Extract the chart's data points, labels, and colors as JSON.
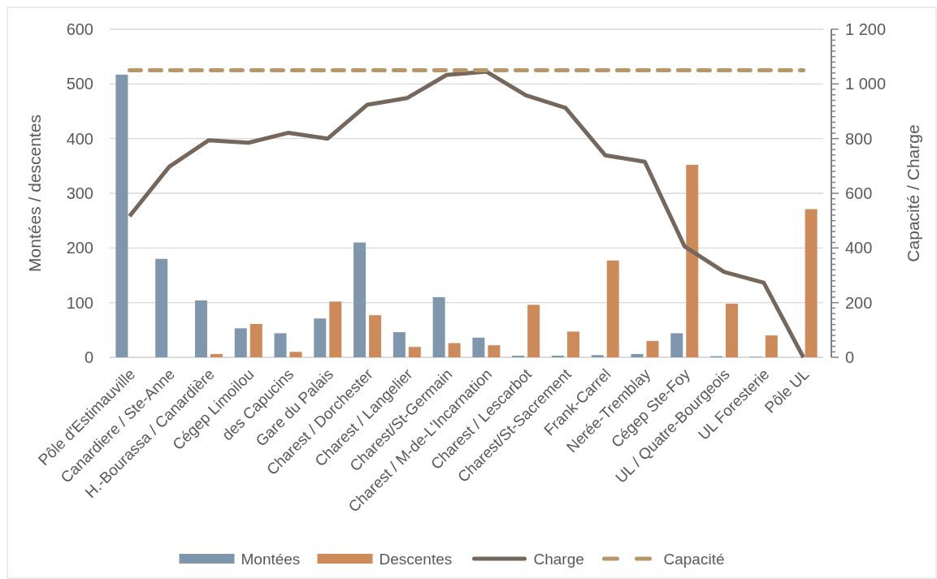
{
  "chart_data": {
    "type": "bar",
    "ylabel": "Montées / descentes",
    "y2label": "Capacité / Charge",
    "categories": [
      "Pôle d'Estimauville",
      "Canardiere / Ste-Anne",
      "H.-Bourassa / Canardière",
      "Cégep Limoilou",
      "des Capucins",
      "Gare du Palais",
      "Charest / Dorchester",
      "Charest / Langelier",
      "Charest/St-Germain",
      "Charest / M-de-L'Incarnation",
      "Charest / Lescarbot",
      "Charest/St-Sacrement",
      "Frank-Carrel",
      "Nerée-Tremblay",
      "Cégep Ste-Foy",
      "UL / Quatre-Bourgeois",
      "UL Foresterie",
      "Pôle UL"
    ],
    "series": [
      {
        "name": "Montées",
        "color": "#7f96ac",
        "values": [
          517,
          180,
          104,
          53,
          44,
          71,
          210,
          46,
          110,
          36,
          3,
          3,
          4,
          6,
          44,
          2,
          1,
          0
        ]
      },
      {
        "name": "Descentes",
        "color": "#cd8b5c",
        "values": [
          0,
          0,
          6,
          61,
          10,
          102,
          77,
          19,
          26,
          22,
          96,
          47,
          177,
          30,
          352,
          98,
          40,
          271
        ]
      },
      {
        "name": "Charge",
        "type": "line",
        "axis": "y2",
        "color": "#76675d",
        "line_style": "solid",
        "values": [
          516,
          697,
          794,
          785,
          821,
          800,
          924,
          948,
          1033,
          1045,
          958,
          912,
          739,
          715,
          406,
          312,
          273,
          0
        ]
      },
      {
        "name": "Capacité",
        "type": "line",
        "axis": "y2",
        "color": "#b8966a",
        "line_style": "dashed",
        "values": [
          1050,
          1050,
          1050,
          1050,
          1050,
          1050,
          1050,
          1050,
          1050,
          1050,
          1050,
          1050,
          1050,
          1050,
          1050,
          1050,
          1050,
          1050
        ]
      }
    ],
    "ylim": [
      0,
      600
    ],
    "yticks": [
      0,
      100,
      200,
      300,
      400,
      500,
      600
    ],
    "y2lim": [
      0,
      1200
    ],
    "y2ticks": [
      0,
      {
        "value": 20,
        "label": null
      },
      {
        "value": 40,
        "label": null
      },
      {
        "value": 60,
        "label": null
      },
      {
        "value": 80,
        "label": null
      },
      {
        "value": 100,
        "label": null
      },
      {
        "value": 120,
        "label": null
      },
      {
        "value": 140,
        "label": null
      },
      {
        "value": 160,
        "label": null
      },
      {
        "value": 180,
        "label": null
      },
      200,
      {
        "value": 220,
        "label": null
      },
      {
        "value": 240,
        "label": null
      },
      {
        "value": 260,
        "label": null
      },
      {
        "value": 280,
        "label": null
      },
      {
        "value": 300,
        "label": null
      },
      {
        "value": 320,
        "label": null
      },
      {
        "value": 340,
        "label": null
      },
      {
        "value": 360,
        "label": null
      },
      {
        "value": 380,
        "label": null
      },
      400,
      {
        "value": 420,
        "label": null
      },
      {
        "value": 440,
        "label": null
      },
      {
        "value": 460,
        "label": null
      },
      {
        "value": 480,
        "label": null
      },
      {
        "value": 500,
        "label": null
      },
      {
        "value": 520,
        "label": null
      },
      {
        "value": 540,
        "label": null
      },
      {
        "value": 560,
        "label": null
      },
      {
        "value": 580,
        "label": null
      },
      600,
      {
        "value": 620,
        "label": null
      },
      {
        "value": 640,
        "label": null
      },
      {
        "value": 660,
        "label": null
      },
      {
        "value": 680,
        "label": null
      },
      {
        "value": 700,
        "label": null
      },
      {
        "value": 720,
        "label": null
      },
      {
        "value": 740,
        "label": null
      },
      {
        "value": 760,
        "label": null
      },
      {
        "value": 780,
        "label": null
      },
      800,
      {
        "value": 820,
        "label": null
      },
      {
        "value": 840,
        "label": null
      },
      {
        "value": 860,
        "label": null
      },
      {
        "value": 880,
        "label": null
      },
      {
        "value": 900,
        "label": null
      },
      {
        "value": 920,
        "label": null
      },
      {
        "value": 940,
        "label": null
      },
      {
        "value": 960,
        "label": null
      },
      {
        "value": 980,
        "label": null
      },
      {
        "value": 1000,
        "label": "1 000"
      },
      {
        "value": 1020,
        "label": null
      },
      {
        "value": 1040,
        "label": null
      },
      {
        "value": 1060,
        "label": null
      },
      {
        "value": 1080,
        "label": null
      },
      {
        "value": 1100,
        "label": null
      },
      {
        "value": 1120,
        "label": null
      },
      {
        "value": 1140,
        "label": null
      },
      {
        "value": 1160,
        "label": null
      },
      {
        "value": 1180,
        "label": null
      },
      {
        "value": 1200,
        "label": "1 200"
      }
    ],
    "grid": "y",
    "legend": "bottom"
  }
}
